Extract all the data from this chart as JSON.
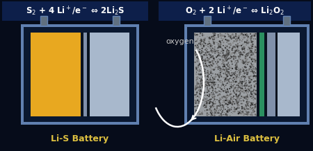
{
  "bg_color": "#060c1a",
  "title_bg_color": "#0d1f4a",
  "title_text_color": "#ffffff",
  "label_text_color": "#ddc040",
  "oxygen_text_color": "#c8c8c8",
  "fig_width": 4.5,
  "fig_height": 2.18,
  "left_title": "S$_2$ + 4 Li$^+$/e$^-$ ⇔ 2Li$_2$S",
  "right_title": "O$_2$ + 2 Li$^+$/e$^-$ ⇔ Li$_2$O$_2$",
  "left_label": "Li-S Battery",
  "right_label": "Li-Air Battery",
  "oxygen_label": "oxygen",
  "battery_outline_color": "#6080b0",
  "battery_inner_color": "#0a1830",
  "yellow_color": "#e8a820",
  "separator_color": "#8090aa",
  "light_blue_color": "#a8b8cc",
  "green_color": "#2a9060",
  "terminal_color": "#607080",
  "porous_bg": "#9ca0a4"
}
